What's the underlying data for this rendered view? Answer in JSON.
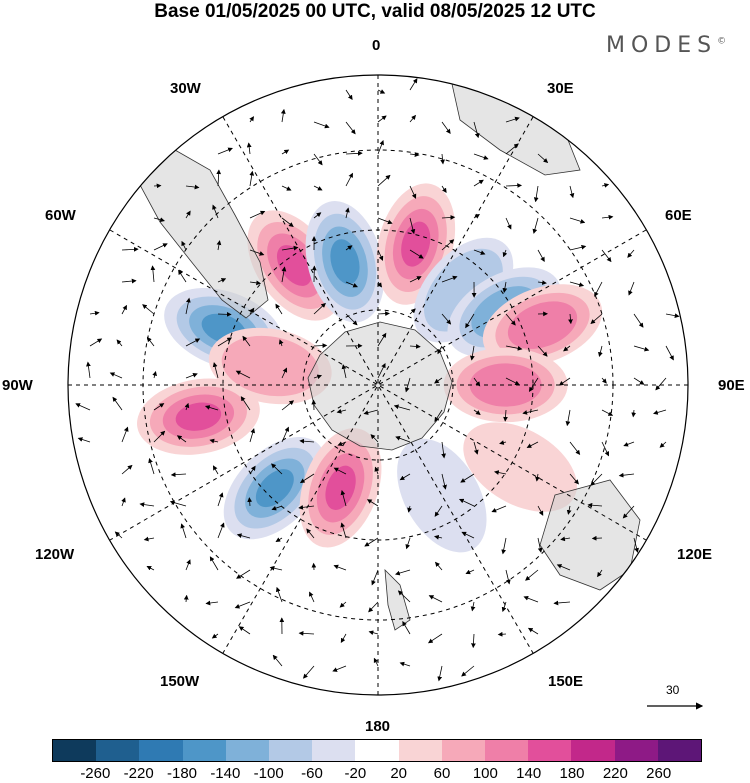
{
  "title": "Base 01/05/2025 00 UTC, valid 08/05/2025 12 UTC",
  "brand": "MODES",
  "brand_mark": "©",
  "longitude_labels": {
    "north": "0",
    "n30e": "30E",
    "n60e": "60E",
    "east": "90E",
    "s120e": "120E",
    "s150e": "150E",
    "south": "180",
    "s150w": "150W",
    "s120w": "120W",
    "west": "90W",
    "n60w": "60W",
    "n30w": "30W"
  },
  "vector_scale": {
    "value": "30"
  },
  "colorbar": {
    "colors": [
      "#0e3a5c",
      "#1f5f8f",
      "#2f7ab3",
      "#4e96c8",
      "#7fb1d9",
      "#b3c9e6",
      "#dcdff0",
      "#ffffff",
      "#f9d4d5",
      "#f6a9b9",
      "#ef7fa8",
      "#e24f9b",
      "#c2288a",
      "#8e1a86",
      "#5d1677"
    ],
    "ticks": [
      "-260",
      "-220",
      "-180",
      "-140",
      "-100",
      "-60",
      "-20",
      "20",
      "60",
      "100",
      "140",
      "180",
      "220",
      "260"
    ]
  },
  "anomalies": [
    {
      "lon": -35,
      "lat": -50,
      "sign": 1,
      "level": 4
    },
    {
      "lon": -15,
      "lat": -55,
      "sign": -1,
      "level": 4
    },
    {
      "lon": 15,
      "lat": -50,
      "sign": 1,
      "level": 4
    },
    {
      "lon": 42,
      "lat": -55,
      "sign": -1,
      "level": 2
    },
    {
      "lon": 60,
      "lat": -50,
      "sign": -1,
      "level": 3
    },
    {
      "lon": 70,
      "lat": -42,
      "sign": 1,
      "level": 3
    },
    {
      "lon": 90,
      "lat": -55,
      "sign": 1,
      "level": 3
    },
    {
      "lon": -70,
      "lat": -45,
      "sign": -1,
      "level": 4
    },
    {
      "lon": -100,
      "lat": -40,
      "sign": 1,
      "level": 4
    },
    {
      "lon": -135,
      "lat": -50,
      "sign": -1,
      "level": 4
    },
    {
      "lon": -160,
      "lat": -60,
      "sign": 1,
      "level": 4
    },
    {
      "lon": 120,
      "lat": -45,
      "sign": 1,
      "level": 1
    },
    {
      "lon": 150,
      "lat": -55,
      "sign": -1,
      "level": 1
    },
    {
      "lon": -80,
      "lat": -60,
      "sign": 1,
      "level": 2
    }
  ]
}
